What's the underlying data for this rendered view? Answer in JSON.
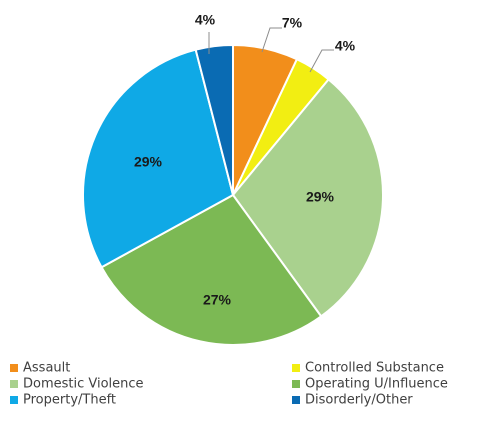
{
  "chart_data": {
    "type": "pie",
    "title": "",
    "start_angle_deg": 0,
    "direction": "clockwise",
    "slices": [
      {
        "label": "Assault",
        "value": 7,
        "display": "7%",
        "color": "#F28E1B"
      },
      {
        "label": "Controlled Substance",
        "value": 4,
        "display": "4%",
        "color": "#F2EE12"
      },
      {
        "label": "Domestic Violence",
        "value": 29,
        "display": "29%",
        "color": "#A9D18E"
      },
      {
        "label": "Operating U/Influence",
        "value": 27,
        "display": "27%",
        "color": "#7CB954"
      },
      {
        "label": "Property/Theft",
        "value": 29,
        "display": "29%",
        "color": "#0FA9E6"
      },
      {
        "label": "Disorderly/Other",
        "value": 4,
        "display": "4%",
        "color": "#0A6BB3"
      }
    ],
    "legend": {
      "position": "bottom",
      "columns": 2,
      "items": [
        "Assault",
        "Controlled Substance",
        "Domestic Violence",
        "Operating U/Influence",
        "Property/Theft",
        "Disorderly/Other"
      ]
    }
  }
}
